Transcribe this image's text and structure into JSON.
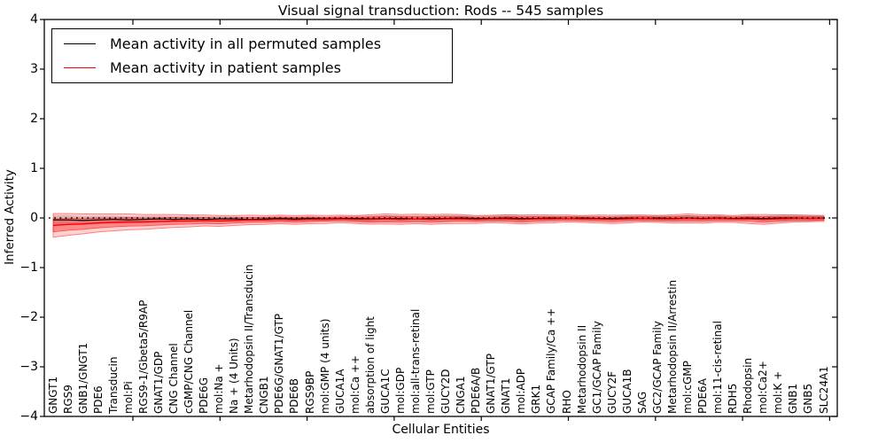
{
  "title": "Visual signal transduction: Rods -- 545 samples",
  "axes": {
    "ylabel": "Inferred Activity",
    "xlabel": "Cellular Entities",
    "yticks": [
      "4",
      "3",
      "2",
      "1",
      "0",
      "−1",
      "−2",
      "−3",
      "−4"
    ]
  },
  "chart_data": {
    "type": "line",
    "title": "Visual signal transduction: Rods -- 545 samples",
    "xlabel": "Cellular Entities",
    "ylabel": "Inferred Activity",
    "ylim": [
      -4,
      4
    ],
    "grid": false,
    "legend_position": "upper left",
    "zero_reference_line": 0,
    "categories": [
      "GNGT1",
      "RGS9",
      "GNB1/GNGT1",
      "PDE6",
      "Transducin",
      "mol:Pi",
      "RGS9-1/Gbeta5/R9AP",
      "GNAT1/GDP",
      "CNG Channel",
      "cGMP/CNG Channel",
      "PDE6G",
      "mol:Na +",
      "Na + (4 Units)",
      "Metarhodopsin II/Transducin",
      "CNGB1",
      "PDE6G/GNAT1/GTP",
      "PDE6B",
      "RGS9BP",
      "mol:GMP (4 units)",
      "GUCA1A",
      "mol:Ca ++",
      "absorption of light",
      "GUCA1C",
      "mol:GDP",
      "mol:all-trans-retinal",
      "mol:GTP",
      "GUCY2D",
      "CNGA1",
      "PDE6A/B",
      "GNAT1/GTP",
      "GNAT1",
      "mol:ADP",
      "GRK1",
      "GCAP Family/Ca ++",
      "RHO",
      "Metarhodopsin II",
      "GC1/GCAP Family",
      "GUCY2F",
      "GUCA1B",
      "SAG",
      "GC2/GCAP Family",
      "Metarhodopsin II/Arrestin",
      "mol:cGMP",
      "PDE6A",
      "mol:11-cis-retinal",
      "RDH5",
      "Rhodopsin",
      "mol:Ca2+",
      "mol:K +",
      "GNB1",
      "GNB5",
      "SLC24A1"
    ],
    "series": [
      {
        "name": "Mean activity in all permuted samples",
        "color": "#000000",
        "values": [
          -0.04,
          -0.04,
          -0.05,
          -0.04,
          -0.03,
          -0.04,
          -0.03,
          -0.02,
          -0.03,
          -0.02,
          -0.03,
          -0.02,
          -0.02,
          -0.03,
          -0.02,
          -0.01,
          -0.02,
          -0.01,
          -0.02,
          -0.01,
          -0.01,
          -0.02,
          -0.01,
          -0.01,
          -0.02,
          -0.01,
          -0.01,
          0,
          -0.01,
          -0.01,
          0,
          -0.01,
          -0.01,
          0,
          -0.01,
          0,
          -0.01,
          -0.01,
          0,
          -0.01,
          0,
          -0.01,
          0,
          -0.01,
          0,
          -0.01,
          0,
          -0.01,
          0,
          0,
          -0.01,
          0
        ],
        "band_halfwidth": [
          0.1,
          0.095,
          0.09,
          0.085,
          0.08,
          0.075,
          0.07,
          0.07,
          0.065,
          0.06,
          0.06,
          0.055,
          0.055,
          0.05,
          0.05,
          0.05,
          0.055,
          0.05,
          0.05,
          0.05,
          0.06,
          0.07,
          0.065,
          0.06,
          0.055,
          0.06,
          0.065,
          0.06,
          0.055,
          0.065,
          0.07,
          0.065,
          0.055,
          0.05,
          0.05,
          0.055,
          0.05,
          0.05,
          0.055,
          0.065,
          0.07,
          0.06,
          0.055,
          0.05,
          0.055,
          0.05,
          0.05,
          0.055,
          0.07,
          0.075,
          0.07,
          0.06
        ],
        "band_color": "#000000",
        "band_opacity": 0.14
      },
      {
        "name": "Mean activity in patient samples",
        "color": "#ff0000",
        "values": [
          -0.15,
          -0.13,
          -0.12,
          -0.1,
          -0.09,
          -0.08,
          -0.08,
          -0.07,
          -0.06,
          -0.06,
          -0.05,
          -0.06,
          -0.05,
          -0.04,
          -0.04,
          -0.03,
          -0.04,
          -0.03,
          -0.03,
          -0.02,
          -0.03,
          -0.03,
          -0.02,
          -0.03,
          -0.02,
          -0.03,
          -0.02,
          -0.02,
          -0.03,
          -0.02,
          -0.02,
          -0.03,
          -0.02,
          -0.02,
          -0.01,
          -0.02,
          -0.02,
          -0.03,
          -0.02,
          -0.01,
          -0.02,
          -0.02,
          -0.01,
          -0.02,
          -0.01,
          -0.02,
          -0.02,
          -0.03,
          -0.02,
          -0.01,
          -0.01,
          -0.01
        ],
        "band_inner_halfwidth": [
          0.13,
          0.12,
          0.11,
          0.1,
          0.09,
          0.085,
          0.08,
          0.075,
          0.07,
          0.065,
          0.06,
          0.06,
          0.055,
          0.05,
          0.05,
          0.045,
          0.05,
          0.045,
          0.04,
          0.04,
          0.045,
          0.055,
          0.06,
          0.06,
          0.055,
          0.06,
          0.055,
          0.05,
          0.045,
          0.04,
          0.05,
          0.055,
          0.05,
          0.045,
          0.04,
          0.04,
          0.045,
          0.05,
          0.045,
          0.04,
          0.04,
          0.05,
          0.055,
          0.05,
          0.045,
          0.04,
          0.05,
          0.06,
          0.05,
          0.04,
          0.04,
          0.035
        ],
        "band_outer_halfwidth": [
          0.24,
          0.22,
          0.2,
          0.18,
          0.17,
          0.16,
          0.15,
          0.14,
          0.13,
          0.12,
          0.11,
          0.11,
          0.1,
          0.095,
          0.09,
          0.085,
          0.09,
          0.085,
          0.08,
          0.075,
          0.08,
          0.095,
          0.1,
          0.1,
          0.095,
          0.1,
          0.095,
          0.09,
          0.08,
          0.075,
          0.085,
          0.09,
          0.085,
          0.08,
          0.07,
          0.07,
          0.08,
          0.085,
          0.08,
          0.07,
          0.07,
          0.085,
          0.09,
          0.085,
          0.075,
          0.07,
          0.09,
          0.1,
          0.085,
          0.07,
          0.065,
          0.06
        ],
        "band_color": "#ff0000",
        "band_inner_opacity": 0.35,
        "band_outer_opacity": 0.18
      }
    ]
  }
}
